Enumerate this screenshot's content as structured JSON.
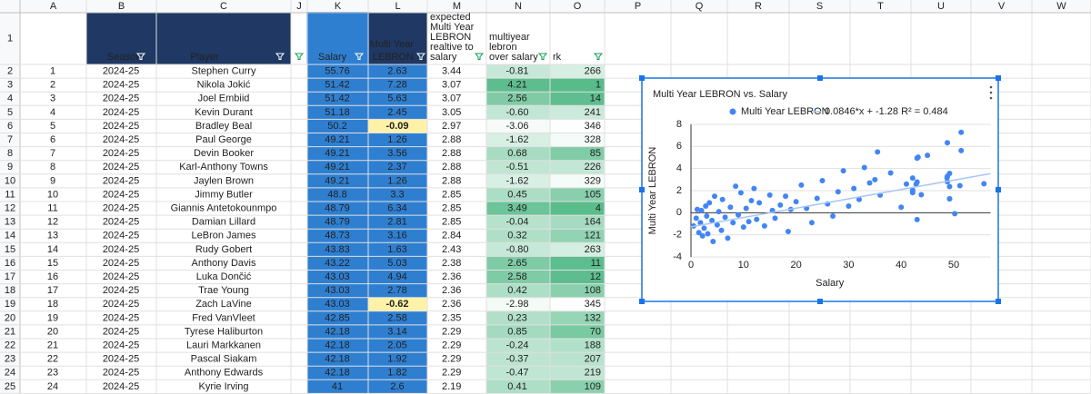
{
  "sheet": {
    "column_letters": [
      "A",
      "B",
      "C",
      "J",
      "K",
      "L",
      "M",
      "N",
      "O",
      "P",
      "Q",
      "R",
      "S",
      "T",
      "U",
      "V",
      "W"
    ],
    "row_numbers": [
      1,
      2,
      3,
      4,
      5,
      6,
      7,
      8,
      9,
      10,
      11,
      12,
      13,
      14,
      15,
      16,
      17,
      18,
      19,
      20,
      21,
      22,
      23,
      24,
      25
    ],
    "header_row": [
      [
        "Season"
      ],
      [
        "Player"
      ],
      [
        "Salary"
      ],
      [
        "Multi Year",
        "LEBRON"
      ],
      [
        "expected",
        "Multi Year",
        "LEBRON",
        "realtive to",
        "salary"
      ],
      [
        "multiyear",
        "lebron",
        "over salary"
      ],
      [
        "rk"
      ]
    ],
    "rows": [
      [
        "1",
        "2024-25",
        "Stephen Curry",
        "55.76",
        "2.63",
        "3.44",
        "-0.81",
        "266"
      ],
      [
        "2",
        "2024-25",
        "Nikola Jokić",
        "51.42",
        "7.28",
        "3.07",
        "4.21",
        "1"
      ],
      [
        "3",
        "2024-25",
        "Joel Embiid",
        "51.42",
        "5.63",
        "3.07",
        "2.56",
        "14"
      ],
      [
        "4",
        "2024-25",
        "Kevin Durant",
        "51.18",
        "2.45",
        "3.05",
        "-0.60",
        "241"
      ],
      [
        "5",
        "2024-25",
        "Bradley Beal",
        "50.2",
        "-0.09",
        "2.97",
        "-3.06",
        "346"
      ],
      [
        "6",
        "2024-25",
        "Paul George",
        "49.21",
        "1.26",
        "2.88",
        "-1.62",
        "328"
      ],
      [
        "7",
        "2024-25",
        "Devin Booker",
        "49.21",
        "3.56",
        "2.88",
        "0.68",
        "85"
      ],
      [
        "8",
        "2024-25",
        "Karl-Anthony Towns",
        "49.21",
        "2.37",
        "2.88",
        "-0.51",
        "226"
      ],
      [
        "9",
        "2024-25",
        "Jaylen Brown",
        "49.21",
        "1.26",
        "2.88",
        "-1.62",
        "329"
      ],
      [
        "10",
        "2024-25",
        "Jimmy Butler",
        "48.8",
        "3.3",
        "2.85",
        "0.45",
        "105"
      ],
      [
        "11",
        "2024-25",
        "Giannis Antetokounmpo",
        "48.79",
        "6.34",
        "2.85",
        "3.49",
        "4"
      ],
      [
        "12",
        "2024-25",
        "Damian Lillard",
        "48.79",
        "2.81",
        "2.85",
        "-0.04",
        "164"
      ],
      [
        "13",
        "2024-25",
        "LeBron James",
        "48.73",
        "3.16",
        "2.84",
        "0.32",
        "121"
      ],
      [
        "14",
        "2024-25",
        "Rudy Gobert",
        "43.83",
        "1.63",
        "2.43",
        "-0.80",
        "263"
      ],
      [
        "15",
        "2024-25",
        "Anthony Davis",
        "43.22",
        "5.03",
        "2.38",
        "2.65",
        "11"
      ],
      [
        "16",
        "2024-25",
        "Luka Dončić",
        "43.03",
        "4.94",
        "2.36",
        "2.58",
        "12"
      ],
      [
        "17",
        "2024-25",
        "Trae Young",
        "43.03",
        "2.78",
        "2.36",
        "0.42",
        "108"
      ],
      [
        "18",
        "2024-25",
        "Zach LaVine",
        "43.03",
        "-0.62",
        "2.36",
        "-2.98",
        "345"
      ],
      [
        "19",
        "2024-25",
        "Fred VanVleet",
        "42.85",
        "2.58",
        "2.35",
        "0.23",
        "132"
      ],
      [
        "20",
        "2024-25",
        "Tyrese Haliburton",
        "42.18",
        "3.14",
        "2.29",
        "0.85",
        "70"
      ],
      [
        "21",
        "2024-25",
        "Lauri Markkanen",
        "42.18",
        "2.05",
        "2.29",
        "-0.24",
        "188"
      ],
      [
        "22",
        "2024-25",
        "Pascal Siakam",
        "42.18",
        "1.92",
        "2.29",
        "-0.37",
        "207"
      ],
      [
        "23",
        "2024-25",
        "Anthony Edwards",
        "42.18",
        "1.82",
        "2.29",
        "-0.47",
        "219"
      ],
      [
        "24",
        "2024-25",
        "Kyrie Irving",
        "41",
        "2.6",
        "2.19",
        "0.41",
        "109"
      ]
    ]
  },
  "chart_data": {
    "type": "scatter",
    "title": "Multi Year LEBRON vs. Salary",
    "x_label": "Salary",
    "y_label": "Multi Year LEBRON",
    "xlim": [
      0,
      57
    ],
    "ylim": [
      -4,
      8
    ],
    "xticks": [
      0,
      10,
      20,
      30,
      40,
      50
    ],
    "yticks": [
      -4,
      -2,
      0,
      2,
      4,
      6,
      8
    ],
    "series": [
      {
        "name": "Multi Year LEBRON",
        "color": "#4285f4",
        "x": [
          55.76,
          51.42,
          51.42,
          51.18,
          50.2,
          49.21,
          49.21,
          49.21,
          49.21,
          48.8,
          48.79,
          48.79,
          48.73,
          43.83,
          43.22,
          43.03,
          43.03,
          43.03,
          42.85,
          42.18,
          42.18,
          42.18,
          42.18,
          41,
          0.5,
          1,
          1.2,
          1.5,
          1.8,
          2,
          2.2,
          2.5,
          2.8,
          3,
          3.2,
          3.5,
          4,
          4.2,
          4.5,
          5,
          5.3,
          5.8,
          6,
          6.5,
          7,
          7.5,
          8,
          8.5,
          9,
          9.5,
          10,
          10.5,
          11,
          11.5,
          12,
          12.5,
          13,
          14,
          15,
          15.5,
          16,
          17,
          18,
          18.5,
          19,
          20,
          21,
          22,
          23,
          24,
          25,
          26,
          27,
          28,
          29,
          30,
          31,
          32,
          33,
          34,
          35,
          35.5,
          36,
          38,
          40,
          45
        ],
        "y": [
          2.63,
          7.28,
          5.63,
          2.45,
          -0.09,
          1.26,
          3.56,
          2.37,
          1.26,
          3.3,
          6.34,
          2.81,
          3.16,
          1.63,
          5.03,
          4.94,
          2.78,
          -0.62,
          2.58,
          3.14,
          2.05,
          1.92,
          1.82,
          2.6,
          -1.2,
          -0.5,
          0.3,
          -1.8,
          -0.9,
          0.2,
          -2.1,
          -1.4,
          0.6,
          -0.3,
          -1.9,
          0.9,
          -0.7,
          -2.6,
          1.5,
          -1.1,
          0.1,
          -1.6,
          1.2,
          -0.4,
          -2.3,
          0.5,
          -0.9,
          2.4,
          -0.2,
          1.8,
          -1.3,
          0.4,
          -0.8,
          1.1,
          2.2,
          -0.6,
          0.9,
          -1.2,
          1.6,
          0.2,
          -0.5,
          0.7,
          1.5,
          -1.7,
          0.3,
          1.0,
          2.5,
          0.4,
          -0.9,
          1.3,
          2.9,
          0.8,
          -0.3,
          1.9,
          3.8,
          0.6,
          2.2,
          1.2,
          4.1,
          2.7,
          3.0,
          5.5,
          1.6,
          3.6,
          0.5,
          5.2
        ]
      }
    ],
    "trendline": {
      "label": "0.0846*x + -1.28 R² = 0.484",
      "slope": 0.0846,
      "intercept": -1.28,
      "color": "#a7c7f7"
    }
  }
}
